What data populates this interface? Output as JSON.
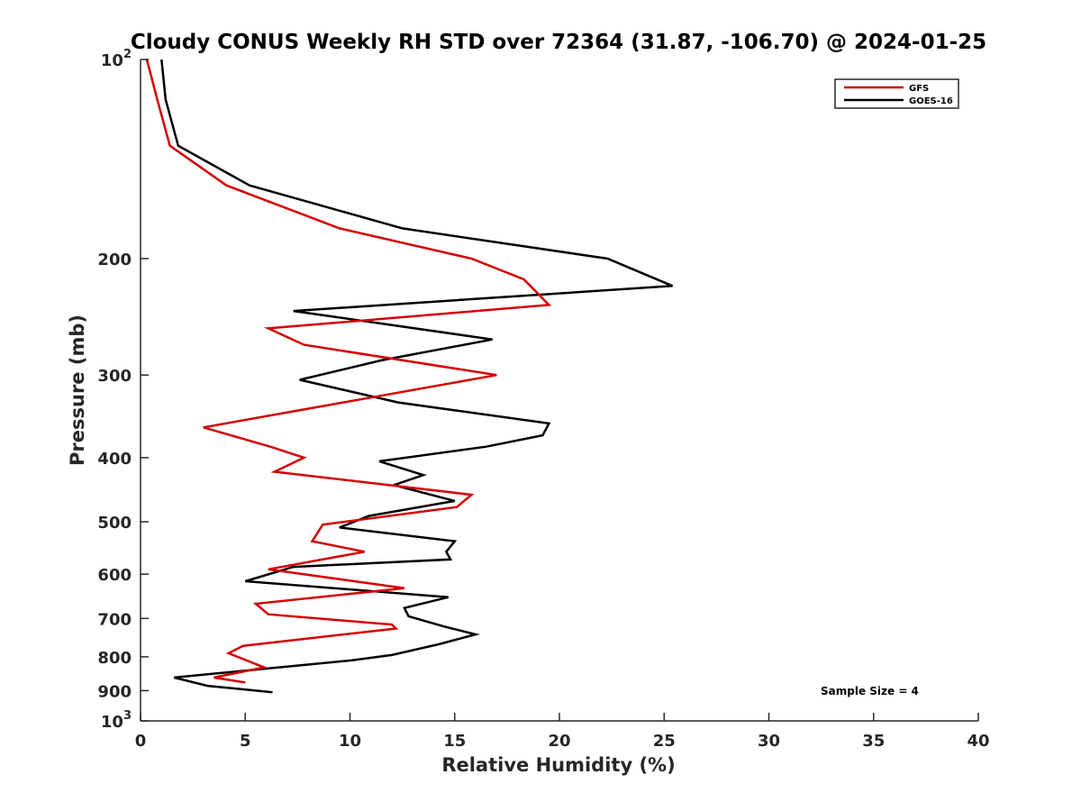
{
  "chart_data": {
    "type": "line",
    "title": "Cloudy CONUS Weekly RH STD over 72364 (31.87, -106.70) @ 2024-01-25",
    "xlabel": "Relative Humidity (%)",
    "ylabel": "Pressure (mb)",
    "xlim": [
      0,
      40
    ],
    "ylim": [
      1000,
      100
    ],
    "y_scale": "log",
    "y_reversed": true,
    "x_ticks": [
      0,
      5,
      10,
      15,
      20,
      25,
      30,
      35,
      40
    ],
    "x_tick_labels": [
      "0",
      "5",
      "10",
      "15",
      "20",
      "25",
      "30",
      "35",
      "40"
    ],
    "y_ticks": [
      100,
      200,
      300,
      400,
      500,
      600,
      700,
      800,
      900,
      1000
    ],
    "y_tick_labels": [
      {
        "base": "10",
        "exp": "2"
      },
      {
        "base": "200",
        "exp": ""
      },
      {
        "base": "300",
        "exp": ""
      },
      {
        "base": "400",
        "exp": ""
      },
      {
        "base": "500",
        "exp": ""
      },
      {
        "base": "600",
        "exp": ""
      },
      {
        "base": "700",
        "exp": ""
      },
      {
        "base": "800",
        "exp": ""
      },
      {
        "base": "900",
        "exp": ""
      },
      {
        "base": "10",
        "exp": "3"
      }
    ],
    "grid": false,
    "legend_position": "top-right",
    "annotation": "Sample Size = 4",
    "series": [
      {
        "name": "GFS",
        "color": "#d40000",
        "points": [
          [
            0.3,
            100
          ],
          [
            0.8,
            115
          ],
          [
            1.4,
            135
          ],
          [
            4.1,
            155
          ],
          [
            9.5,
            180
          ],
          [
            15.8,
            200
          ],
          [
            18.3,
            215
          ],
          [
            19.5,
            235
          ],
          [
            6.1,
            255
          ],
          [
            7.8,
            270
          ],
          [
            17.0,
            300
          ],
          [
            3.0,
            360
          ],
          [
            6.2,
            385
          ],
          [
            7.8,
            400
          ],
          [
            6.4,
            420
          ],
          [
            15.8,
            455
          ],
          [
            15.1,
            475
          ],
          [
            8.7,
            505
          ],
          [
            8.2,
            535
          ],
          [
            10.7,
            555
          ],
          [
            6.1,
            590
          ],
          [
            12.6,
            630
          ],
          [
            5.5,
            665
          ],
          [
            6.1,
            690
          ],
          [
            12.0,
            715
          ],
          [
            12.2,
            725
          ],
          [
            4.9,
            770
          ],
          [
            4.2,
            790
          ],
          [
            5.9,
            830
          ],
          [
            3.5,
            860
          ],
          [
            5.0,
            875
          ]
        ]
      },
      {
        "name": "GOES-16",
        "color": "#000000",
        "points": [
          [
            1.0,
            100
          ],
          [
            1.2,
            115
          ],
          [
            1.8,
            135
          ],
          [
            5.2,
            155
          ],
          [
            12.5,
            180
          ],
          [
            22.3,
            200
          ],
          [
            25.4,
            220
          ],
          [
            7.3,
            240
          ],
          [
            16.8,
            265
          ],
          [
            11.5,
            285
          ],
          [
            7.6,
            305
          ],
          [
            12.3,
            330
          ],
          [
            19.5,
            355
          ],
          [
            19.2,
            370
          ],
          [
            16.5,
            385
          ],
          [
            11.4,
            405
          ],
          [
            13.5,
            425
          ],
          [
            12.1,
            440
          ],
          [
            15.0,
            465
          ],
          [
            10.9,
            490
          ],
          [
            9.5,
            510
          ],
          [
            15.0,
            535
          ],
          [
            14.6,
            555
          ],
          [
            14.8,
            570
          ],
          [
            7.3,
            585
          ],
          [
            5.0,
            615
          ],
          [
            14.7,
            650
          ],
          [
            12.6,
            675
          ],
          [
            12.8,
            695
          ],
          [
            14.5,
            720
          ],
          [
            16.0,
            740
          ],
          [
            14.3,
            765
          ],
          [
            12.0,
            795
          ],
          [
            10.1,
            810
          ],
          [
            1.6,
            860
          ],
          [
            3.2,
            885
          ],
          [
            6.3,
            905
          ]
        ]
      }
    ]
  }
}
